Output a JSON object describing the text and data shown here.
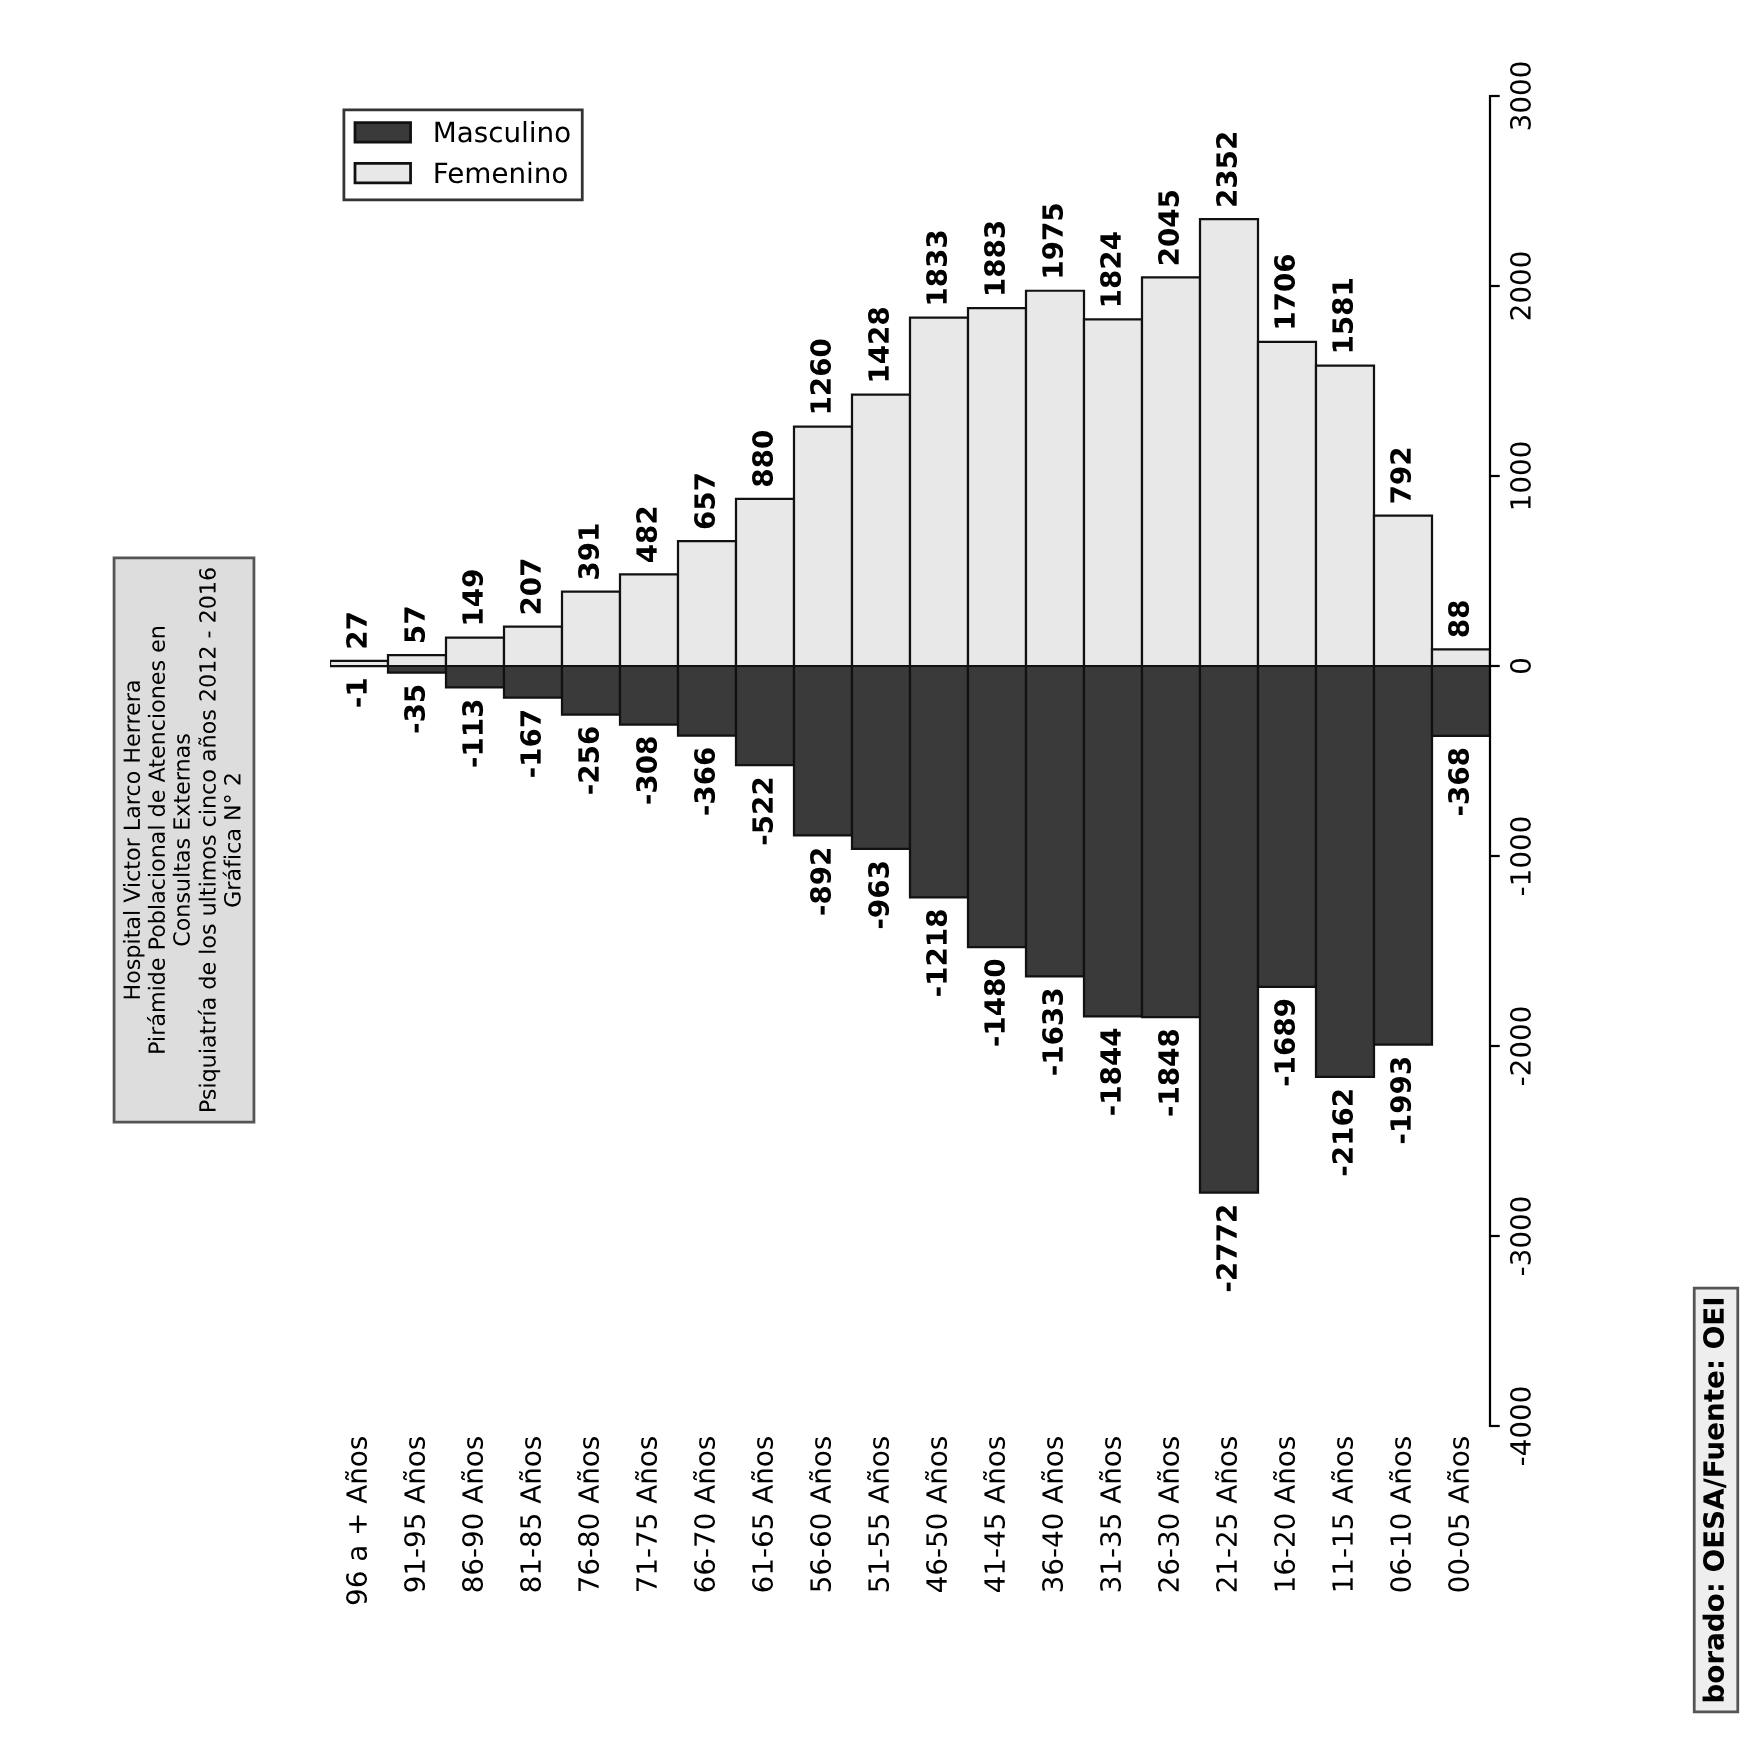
{
  "chart_data": {
    "type": "bar",
    "title": "Hospital Victor Larco Herrera\nPirámide Poblacional de Atenciones en\nConsultas Externas\nPsiquiatría de los ultimos cinco años 2012 - 2016\nGráfica N° 2",
    "categories": [
      "96 a + Años",
      "91-95 Años",
      "86-90 Años",
      "81-85 Años",
      "76-80 Años",
      "71-75 Años",
      "66-70 Años",
      "61-65 Años",
      "56-60 Años",
      "51-55 Años",
      "46-50 Años",
      "41-45 Años",
      "36-40 Años",
      "31-35 Años",
      "26-30 Años",
      "21-25 Años",
      "16-20 Años",
      "11-15 Años",
      "06-10 Años",
      "00-05 Años"
    ],
    "series": [
      {
        "name": "Masculino",
        "color": "#3a3a3a",
        "values": [
          -1,
          -35,
          -113,
          -167,
          -256,
          -308,
          -366,
          -522,
          -892,
          -963,
          -1218,
          -1480,
          -1633,
          -1844,
          -1848,
          -2772,
          -1689,
          -2162,
          -1993,
          -368
        ]
      },
      {
        "name": "Femenino",
        "color": "#e8e8e8",
        "values": [
          27,
          57,
          149,
          207,
          391,
          482,
          657,
          880,
          1260,
          1428,
          1833,
          1883,
          1975,
          1824,
          2045,
          2352,
          1706,
          1581,
          792,
          88
        ]
      }
    ],
    "ylim": [
      -4000,
      3000
    ],
    "yticks": [
      -4000,
      -3000,
      -2000,
      -1000,
      0,
      1000,
      2000,
      3000
    ],
    "data_labels": true,
    "stacked": true,
    "legend": "top left",
    "grid": false,
    "annotations": [
      "borado: OESA/Fuente: OEI"
    ]
  }
}
